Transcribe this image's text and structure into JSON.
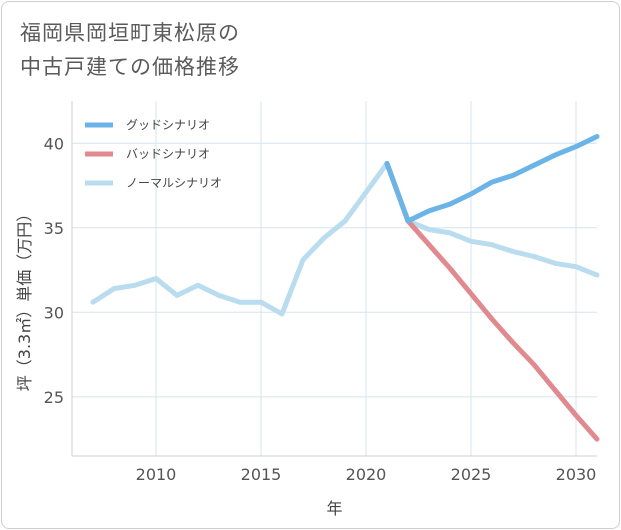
{
  "title_lines": [
    "福岡県岡垣町東松原の",
    "中古戸建ての価格推移"
  ],
  "chart_data": {
    "type": "line",
    "xlabel": "年",
    "ylabel": "坪（3.3㎡）単価（万円）",
    "xlim": [
      2006,
      2031
    ],
    "ylim": [
      21.5,
      42.5
    ],
    "x_ticks": [
      2010,
      2015,
      2020,
      2025,
      2030
    ],
    "y_ticks": [
      25,
      30,
      35,
      40
    ],
    "grid": true,
    "legend_position": "top-left",
    "series": [
      {
        "name": "グッドシナリオ",
        "color": "#6ab4e8",
        "x": [
          2021,
          2022,
          2023,
          2024,
          2025,
          2026,
          2027,
          2028,
          2029,
          2030,
          2031
        ],
        "y": [
          38.8,
          35.4,
          36.0,
          36.4,
          37.0,
          37.7,
          38.1,
          38.7,
          39.3,
          39.8,
          40.4
        ]
      },
      {
        "name": "バッドシナリオ",
        "color": "#e08a90",
        "x": [
          2021,
          2022,
          2023,
          2024,
          2025,
          2026,
          2027,
          2028,
          2029,
          2030,
          2031
        ],
        "y": [
          38.8,
          35.4,
          34.0,
          32.6,
          31.1,
          29.6,
          28.2,
          26.9,
          25.4,
          23.9,
          22.5
        ]
      },
      {
        "name": "ノーマルシナリオ",
        "color": "#b9dcee",
        "x": [
          2007,
          2008,
          2009,
          2010,
          2011,
          2012,
          2013,
          2014,
          2015,
          2016,
          2017,
          2018,
          2019,
          2020,
          2021,
          2022,
          2023,
          2024,
          2025,
          2026,
          2027,
          2028,
          2029,
          2030,
          2031
        ],
        "y": [
          30.6,
          31.4,
          31.6,
          32.0,
          31.0,
          31.6,
          31.0,
          30.6,
          30.6,
          29.9,
          33.1,
          34.4,
          35.4,
          37.1,
          38.8,
          35.4,
          34.9,
          34.7,
          34.2,
          34.0,
          33.6,
          33.3,
          32.9,
          32.7,
          32.2
        ]
      }
    ]
  }
}
